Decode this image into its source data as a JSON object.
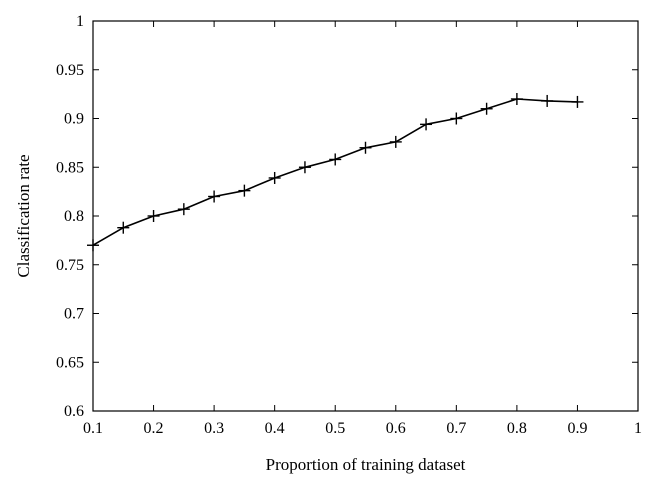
{
  "chart_data": {
    "type": "line",
    "title": "",
    "xlabel": "Proportion of training dataset",
    "ylabel": "Classification rate",
    "xlim": [
      0.1,
      1
    ],
    "ylim": [
      0.6,
      1
    ],
    "x_ticks": [
      "0.1",
      "0.2",
      "0.3",
      "0.4",
      "0.5",
      "0.6",
      "0.7",
      "0.8",
      "0.9",
      "1"
    ],
    "y_ticks": [
      "0.6",
      "0.65",
      "0.7",
      "0.75",
      "0.8",
      "0.85",
      "0.9",
      "0.95",
      "1"
    ],
    "grid": false,
    "legend": "none",
    "series": [
      {
        "marker": "plus",
        "color": "#000000",
        "x": [
          0.1,
          0.15,
          0.2,
          0.25,
          0.3,
          0.35,
          0.4,
          0.45,
          0.5,
          0.55,
          0.6,
          0.65,
          0.7,
          0.75,
          0.8,
          0.85,
          0.9
        ],
        "y": [
          0.77,
          0.788,
          0.8,
          0.807,
          0.82,
          0.826,
          0.839,
          0.85,
          0.858,
          0.87,
          0.876,
          0.894,
          0.9,
          0.91,
          0.92,
          0.918,
          0.917
        ]
      }
    ]
  }
}
